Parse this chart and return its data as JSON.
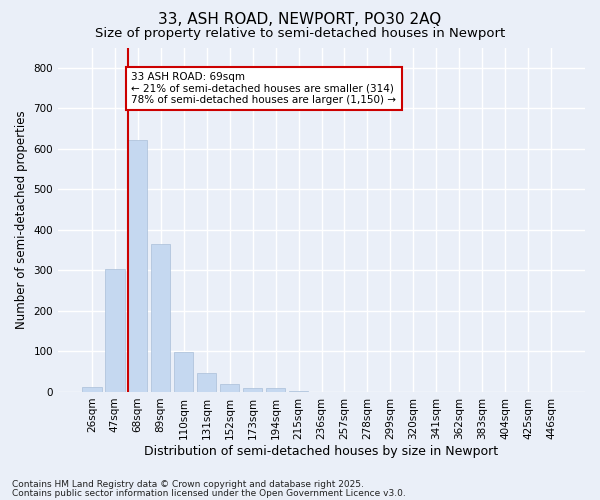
{
  "title1": "33, ASH ROAD, NEWPORT, PO30 2AQ",
  "title2": "Size of property relative to semi-detached houses in Newport",
  "xlabel": "Distribution of semi-detached houses by size in Newport",
  "ylabel": "Number of semi-detached properties",
  "categories": [
    "26sqm",
    "47sqm",
    "68sqm",
    "89sqm",
    "110sqm",
    "131sqm",
    "152sqm",
    "173sqm",
    "194sqm",
    "215sqm",
    "236sqm",
    "257sqm",
    "278sqm",
    "299sqm",
    "320sqm",
    "341sqm",
    "362sqm",
    "383sqm",
    "404sqm",
    "425sqm",
    "446sqm"
  ],
  "values": [
    13,
    303,
    622,
    365,
    98,
    47,
    20,
    10,
    10,
    2,
    0,
    0,
    0,
    0,
    0,
    0,
    0,
    0,
    0,
    0,
    0
  ],
  "bar_color": "#c5d8f0",
  "bar_edge_color": "#aabfd8",
  "vline_color": "#cc0000",
  "vline_x_index": 2,
  "annotation_text": "33 ASH ROAD: 69sqm\n← 21% of semi-detached houses are smaller (314)\n78% of semi-detached houses are larger (1,150) →",
  "annotation_box_color": "#cc0000",
  "ylim": [
    0,
    850
  ],
  "yticks": [
    0,
    100,
    200,
    300,
    400,
    500,
    600,
    700,
    800
  ],
  "footnote1": "Contains HM Land Registry data © Crown copyright and database right 2025.",
  "footnote2": "Contains public sector information licensed under the Open Government Licence v3.0.",
  "bg_color": "#eaeff8",
  "grid_color": "#ffffff",
  "title1_fontsize": 11,
  "title2_fontsize": 9.5,
  "xlabel_fontsize": 9,
  "ylabel_fontsize": 8.5,
  "tick_fontsize": 7.5,
  "annotation_fontsize": 7.5,
  "footnote_fontsize": 6.5
}
